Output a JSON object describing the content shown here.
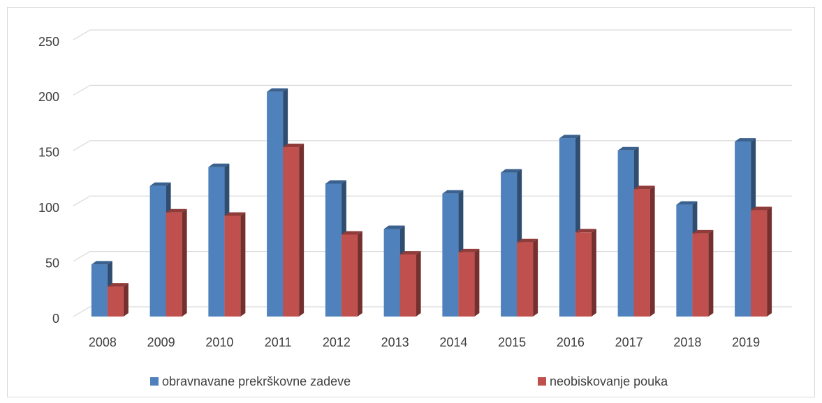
{
  "chart_data": {
    "type": "bar3d",
    "categories": [
      "2008",
      "2009",
      "2010",
      "2011",
      "2012",
      "2013",
      "2014",
      "2015",
      "2016",
      "2017",
      "2018",
      "2019"
    ],
    "series": [
      {
        "name": "obravnavane prekrškovne zadeve",
        "color": "#4f81bd",
        "values": [
          47,
          118,
          135,
          203,
          120,
          79,
          111,
          130,
          161,
          150,
          101,
          158
        ]
      },
      {
        "name": "neobiskovanje pouka",
        "color": "#c0504d",
        "values": [
          27,
          94,
          91,
          153,
          74,
          56,
          58,
          67,
          76,
          115,
          75,
          96
        ]
      }
    ],
    "ylim": [
      0,
      250
    ],
    "yticks": [
      0,
      50,
      100,
      150,
      200,
      250
    ],
    "grid": true,
    "legend": "bottom"
  }
}
